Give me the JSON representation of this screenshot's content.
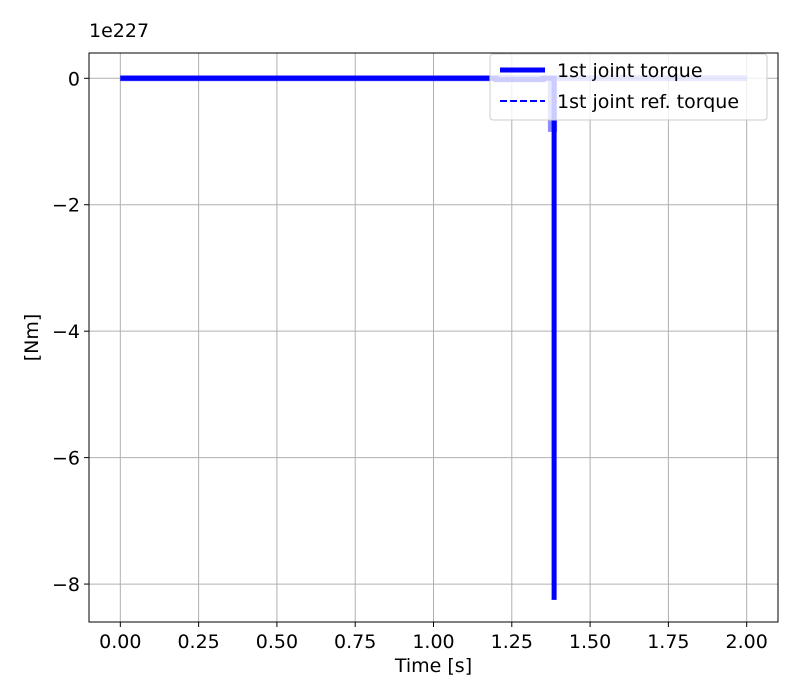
{
  "chart_data": {
    "type": "line",
    "title": "",
    "xlabel": "Time [s]",
    "ylabel": "[Nm]",
    "offset_text": "1e227",
    "xlim": [
      -0.1,
      2.1
    ],
    "ylim": [
      -8.6,
      0.4
    ],
    "grid": true,
    "legend_position": "top-right",
    "x_ticks": [
      0.0,
      0.25,
      0.5,
      0.75,
      1.0,
      1.25,
      1.5,
      1.75,
      2.0
    ],
    "x_tick_labels": [
      "0.00",
      "0.25",
      "0.50",
      "0.75",
      "1.00",
      "1.25",
      "1.50",
      "1.75",
      "2.00"
    ],
    "y_ticks": [
      0,
      -2,
      -4,
      -6,
      -8
    ],
    "y_tick_labels": [
      "0",
      "−2",
      "−4",
      "−6",
      "−8"
    ],
    "series": [
      {
        "name": "1st joint torque",
        "color": "#0000ff",
        "style": "solid",
        "x": [
          0.0,
          1.2,
          1.2,
          1.35,
          1.35,
          1.385,
          1.385
        ],
        "y": [
          0.0,
          0.0,
          -0.02,
          -0.02,
          0.0,
          0.0,
          -8.25
        ]
      },
      {
        "name": "1st joint ref. torque",
        "color": "#0000ff",
        "style": "dashed",
        "x": [
          0.0,
          1.375,
          1.375,
          1.385,
          1.385,
          2.0
        ],
        "y": [
          0.0,
          0.0,
          -0.8,
          -0.8,
          0.0,
          0.0
        ]
      }
    ]
  }
}
